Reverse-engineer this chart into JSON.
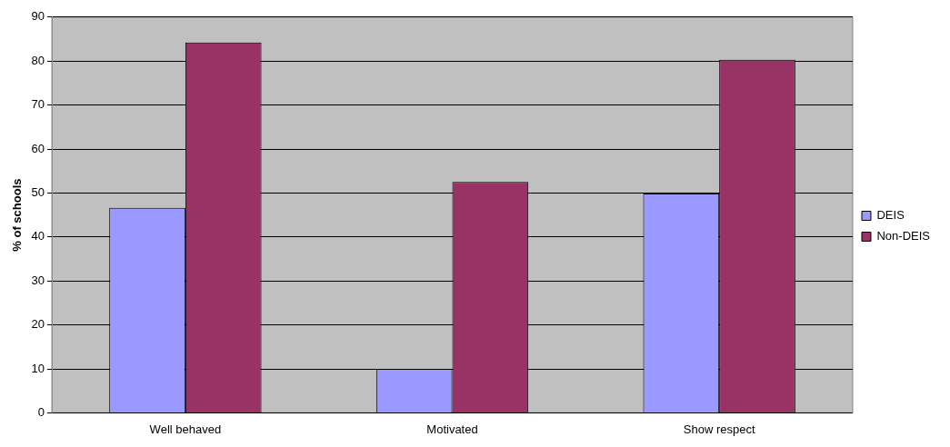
{
  "chart_data": {
    "type": "bar",
    "ylabel": "% of schools",
    "categories": [
      "Well behaved",
      "Motivated",
      "Show respect"
    ],
    "series": [
      {
        "name": "DEIS",
        "color": "#9999ff",
        "values": [
          46.6,
          10,
          49.9
        ]
      },
      {
        "name": "Non-DEIS",
        "color": "#993366",
        "values": [
          84.2,
          52.5,
          80.3
        ]
      }
    ],
    "ylim": [
      0,
      90
    ],
    "yticks": [
      0,
      10,
      20,
      30,
      40,
      50,
      60,
      70,
      80,
      90
    ],
    "grid": "y",
    "legend": "right"
  }
}
